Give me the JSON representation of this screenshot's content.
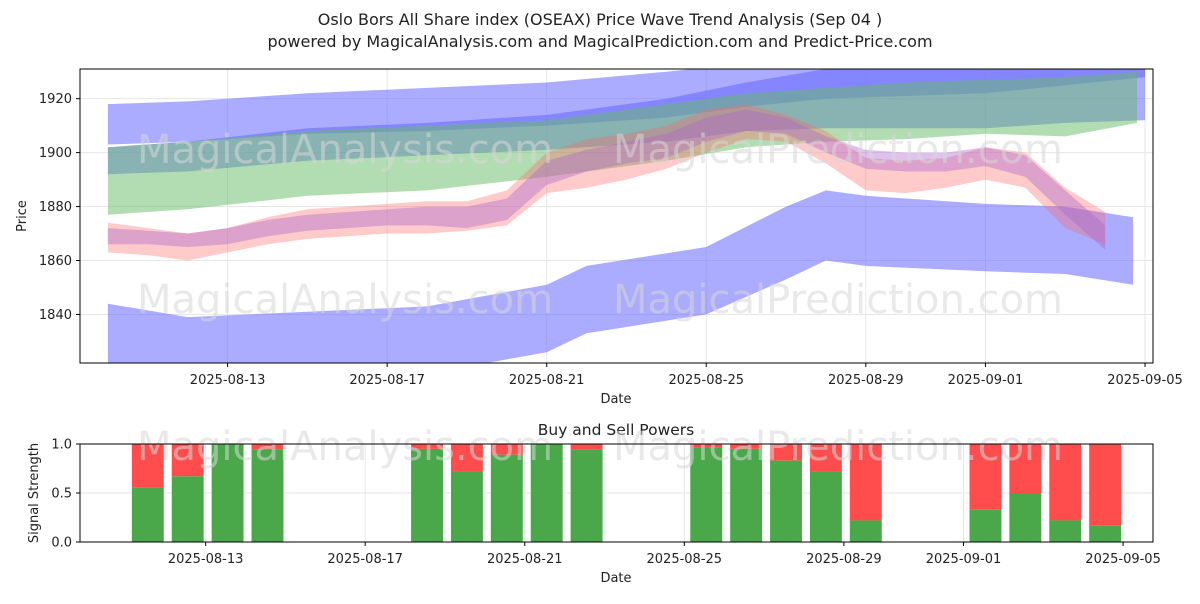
{
  "header": {
    "title_line1": "Oslo Bors All Share index (OSEAX) Price Wave Trend Analysis (Sep 04 )",
    "title_line2": "powered by MagicalAnalysis.com and MagicalPrediction.com and Predict-Price.com"
  },
  "watermarks": [
    "MagicalAnalysis.com",
    "MagicalPrediction.com"
  ],
  "colors": {
    "blue": "#6666ff",
    "green": "#66bb66",
    "red": "#ff6666",
    "pink": "#ff8888",
    "purple": "#aa66cc",
    "buy": "#4aa84a",
    "sell": "#ff4d4d",
    "grid": "#e6e6e6"
  },
  "chart_data": [
    {
      "type": "area",
      "title": "",
      "xlabel": "Date",
      "ylabel": "Price",
      "x_tick_labels": [
        "2025-08-13",
        "2025-08-17",
        "2025-08-21",
        "2025-08-25",
        "2025-08-29",
        "2025-09-01",
        "2025-09-05"
      ],
      "x_tick_days": [
        3,
        7,
        11,
        15,
        19,
        22,
        26
      ],
      "x_range_days": [
        -0.7,
        26.2
      ],
      "y_ticks": [
        1840,
        1860,
        1880,
        1900,
        1920
      ],
      "ylim": [
        1822,
        1931
      ],
      "bands": [
        {
          "name": "upper blue band",
          "color": "blue",
          "opacity": 0.55,
          "x": [
            0,
            2,
            5,
            8,
            11,
            14,
            16,
            18,
            20,
            22,
            24,
            26
          ],
          "lower": [
            1903,
            1904,
            1907,
            1908,
            1910,
            1913,
            1917,
            1920,
            1921,
            1922,
            1925,
            1928
          ],
          "upper": [
            1918,
            1919,
            1922,
            1924,
            1926,
            1930,
            1933,
            1936,
            1936,
            1936,
            1938,
            1945
          ]
        },
        {
          "name": "middle blue band",
          "color": "blue",
          "opacity": 0.55,
          "x": [
            0,
            2,
            5,
            8,
            11,
            14,
            16,
            18,
            20,
            22,
            24,
            26
          ],
          "lower": [
            1892,
            1893,
            1897,
            1899,
            1901,
            1904,
            1908,
            1909,
            1909,
            1909,
            1911,
            1912
          ],
          "upper": [
            1902,
            1904,
            1909,
            1911,
            1914,
            1920,
            1926,
            1931,
            1931,
            1931,
            1932,
            1932
          ]
        },
        {
          "name": "green band",
          "color": "green",
          "opacity": 0.5,
          "x": [
            0,
            2,
            5,
            8,
            11,
            14,
            16,
            18,
            20,
            22,
            24,
            25.8
          ],
          "lower": [
            1877,
            1879,
            1884,
            1886,
            1891,
            1897,
            1902,
            1904,
            1905,
            1907,
            1906,
            1911
          ],
          "upper": [
            1902,
            1904,
            1908,
            1910,
            1912,
            1918,
            1922,
            1924,
            1926,
            1927,
            1928,
            1930
          ]
        },
        {
          "name": "lower blue band",
          "color": "blue",
          "opacity": 0.55,
          "x": [
            0,
            2,
            5,
            8,
            11,
            12,
            15,
            17,
            18,
            19,
            22,
            24,
            25.7
          ],
          "lower": [
            1820,
            1816,
            1816,
            1818,
            1826,
            1833,
            1840,
            1853,
            1860,
            1858,
            1856,
            1855,
            1851
          ],
          "upper": [
            1844,
            1839,
            1841,
            1843,
            1851,
            1858,
            1865,
            1880,
            1886,
            1884,
            1881,
            1880,
            1876
          ]
        },
        {
          "name": "price wave red",
          "color": "red",
          "opacity": 0.35,
          "x": [
            0,
            1,
            2,
            3,
            4,
            5,
            6,
            7,
            8,
            9,
            10,
            11,
            12,
            13,
            14,
            15,
            16,
            17,
            18,
            19,
            20,
            21,
            22,
            23,
            24,
            25
          ],
          "lower": [
            1863,
            1862,
            1860,
            1863,
            1866,
            1868,
            1869,
            1870,
            1870,
            1871,
            1873,
            1885,
            1887,
            1890,
            1894,
            1900,
            1905,
            1904,
            1896,
            1886,
            1885,
            1887,
            1890,
            1887,
            1872,
            1866
          ],
          "upper": [
            1874,
            1872,
            1870,
            1872,
            1876,
            1879,
            1880,
            1881,
            1882,
            1882,
            1886,
            1900,
            1905,
            1907,
            1910,
            1916,
            1918,
            1914,
            1908,
            1898,
            1897,
            1898,
            1902,
            1900,
            1887,
            1878
          ]
        },
        {
          "name": "price wave purple",
          "color": "purple",
          "opacity": 0.4,
          "x": [
            0,
            1,
            2,
            3,
            4,
            5,
            6,
            7,
            8,
            9,
            10,
            11,
            12,
            13,
            14,
            15,
            16,
            17,
            18,
            19,
            20,
            21,
            22,
            23,
            24,
            25
          ],
          "lower": [
            1866,
            1866,
            1865,
            1866,
            1869,
            1871,
            1872,
            1873,
            1873,
            1872,
            1875,
            1888,
            1893,
            1896,
            1898,
            1904,
            1908,
            1907,
            1900,
            1894,
            1893,
            1893,
            1895,
            1891,
            1877,
            1864
          ],
          "upper": [
            1872,
            1871,
            1870,
            1872,
            1875,
            1877,
            1878,
            1879,
            1880,
            1880,
            1883,
            1897,
            1901,
            1904,
            1907,
            1913,
            1916,
            1913,
            1906,
            1901,
            1900,
            1900,
            1902,
            1899,
            1886,
            1873
          ]
        }
      ]
    },
    {
      "type": "bar",
      "title": "Buy and Sell Powers",
      "xlabel": "Date",
      "ylabel": "Signal Strength",
      "x_tick_labels": [
        "2025-08-13",
        "2025-08-17",
        "2025-08-21",
        "2025-08-25",
        "2025-08-29",
        "2025-09-01",
        "2025-09-05"
      ],
      "x_tick_days": [
        3,
        7,
        11,
        15,
        19,
        22,
        26
      ],
      "x_range_days": [
        -0.7,
        26.2
      ],
      "y_ticks": [
        "0.0",
        "0.5",
        "1.0"
      ],
      "ylim": [
        0,
        1
      ],
      "days": [
        1,
        2,
        3,
        4,
        8,
        9,
        10,
        11,
        12,
        15,
        16,
        17,
        18,
        19,
        22,
        23,
        24,
        25
      ],
      "buy": [
        0.56,
        0.67,
        1.0,
        0.94,
        0.95,
        0.72,
        0.89,
        1.0,
        0.94,
        0.96,
        0.95,
        0.83,
        0.72,
        0.22,
        0.33,
        0.5,
        0.22,
        0.17
      ],
      "series": [
        {
          "name": "Buy power",
          "color": "buy"
        },
        {
          "name": "Sell power",
          "color": "sell"
        }
      ]
    }
  ]
}
